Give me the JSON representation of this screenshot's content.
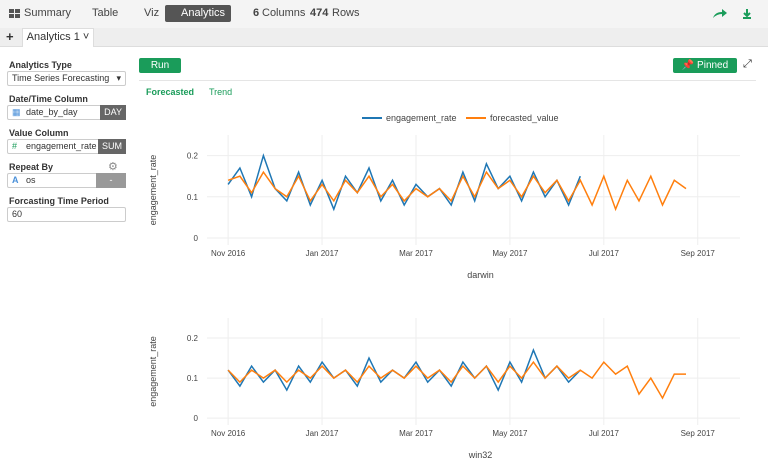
{
  "toolbar": {
    "items": [
      "Summary",
      "Table",
      "Viz",
      "Analytics"
    ],
    "columns_count": "6",
    "columns_label": "Columns",
    "rows_count": "474",
    "rows_label": "Rows"
  },
  "tab": "Analytics 1",
  "sidebar": {
    "analytics_type_label": "Analytics Type",
    "analytics_type": "Time Series Forecasting",
    "date_column_label": "Date/Time Column",
    "date_column": "date_by_day",
    "date_unit": "DAY",
    "value_column_label": "Value Column",
    "value_column": "engagement_rate",
    "value_agg": "SUM",
    "repeat_by_label": "Repeat By",
    "repeat_by": "os",
    "repeat_by_option": "-",
    "period_label": "Forcasting Time Period",
    "period": "60"
  },
  "buttons": {
    "run": "Run",
    "pinned": "Pinned"
  },
  "view_tabs": [
    "Forecasted",
    "Trend"
  ],
  "chart_data": [
    {
      "type": "line",
      "xlabel": "darwin",
      "ylabel": "engagement_rate",
      "x": [
        0,
        0.25,
        0.5,
        0.75,
        1,
        1.25,
        1.5,
        1.75,
        2,
        2.25,
        2.5,
        2.75,
        3,
        3.25,
        3.5,
        3.75,
        4,
        4.25,
        4.5,
        4.75,
        5,
        5.25,
        5.5,
        5.75,
        6,
        6.25,
        6.5,
        6.75,
        7,
        7.25,
        7.5,
        7.75,
        8,
        8.25,
        8.5,
        8.75,
        9,
        9.25,
        9.5,
        9.75
      ],
      "series": [
        {
          "name": "engagement_rate",
          "color": "#1f77b4",
          "values": [
            0.13,
            0.17,
            0.1,
            0.2,
            0.12,
            0.09,
            0.16,
            0.08,
            0.14,
            0.07,
            0.15,
            0.11,
            0.17,
            0.09,
            0.14,
            0.08,
            0.13,
            0.1,
            0.12,
            0.08,
            0.16,
            0.09,
            0.18,
            0.12,
            0.15,
            0.09,
            0.16,
            0.1,
            0.14,
            0.08,
            0.15,
            null,
            null,
            null,
            null,
            null,
            null,
            null,
            null,
            null
          ]
        },
        {
          "name": "forecasted_value",
          "color": "#ff7f0e",
          "values": [
            0.14,
            0.15,
            0.11,
            0.16,
            0.12,
            0.1,
            0.15,
            0.09,
            0.13,
            0.09,
            0.14,
            0.11,
            0.15,
            0.1,
            0.13,
            0.09,
            0.12,
            0.1,
            0.12,
            0.09,
            0.15,
            0.1,
            0.16,
            0.12,
            0.14,
            0.1,
            0.15,
            0.11,
            0.14,
            0.09,
            0.14,
            0.08,
            0.15,
            0.07,
            0.14,
            0.09,
            0.15,
            0.08,
            0.14,
            0.12
          ]
        }
      ],
      "xlim": [
        -0.45,
        10.9
      ],
      "ylim": [
        -0.017,
        0.25
      ],
      "xticks": [
        {
          "value": 0,
          "label": "Nov 2016"
        },
        {
          "value": 2,
          "label": "Jan 2017"
        },
        {
          "value": 4,
          "label": "Mar 2017"
        },
        {
          "value": 6,
          "label": "May 2017"
        },
        {
          "value": 8,
          "label": "Jul 2017"
        },
        {
          "value": 10,
          "label": "Sep 2017"
        }
      ],
      "yticks": [
        0,
        0.1,
        0.2
      ],
      "grid": true
    },
    {
      "type": "line",
      "xlabel": "win32",
      "ylabel": "engagement_rate",
      "x": [
        0,
        0.25,
        0.5,
        0.75,
        1,
        1.25,
        1.5,
        1.75,
        2,
        2.25,
        2.5,
        2.75,
        3,
        3.25,
        3.5,
        3.75,
        4,
        4.25,
        4.5,
        4.75,
        5,
        5.25,
        5.5,
        5.75,
        6,
        6.25,
        6.5,
        6.75,
        7,
        7.25,
        7.5,
        7.75,
        8,
        8.25,
        8.5,
        8.75,
        9,
        9.25,
        9.5,
        9.75
      ],
      "series": [
        {
          "color": "#1f77b4",
          "values": [
            0.12,
            0.08,
            0.13,
            0.09,
            0.12,
            0.07,
            0.13,
            0.09,
            0.14,
            0.1,
            0.12,
            0.08,
            0.15,
            0.09,
            0.12,
            0.1,
            0.14,
            0.09,
            0.12,
            0.08,
            0.14,
            0.1,
            0.13,
            0.07,
            0.14,
            0.09,
            0.17,
            0.1,
            0.13,
            0.09,
            0.12,
            null,
            null,
            null,
            null,
            null,
            null,
            null,
            null,
            null
          ]
        },
        {
          "color": "#ff7f0e",
          "values": [
            0.12,
            0.09,
            0.12,
            0.1,
            0.12,
            0.09,
            0.12,
            0.1,
            0.13,
            0.1,
            0.12,
            0.09,
            0.13,
            0.1,
            0.12,
            0.1,
            0.13,
            0.1,
            0.12,
            0.09,
            0.13,
            0.1,
            0.13,
            0.09,
            0.13,
            0.1,
            0.14,
            0.1,
            0.13,
            0.1,
            0.12,
            0.1,
            0.14,
            0.11,
            0.13,
            0.06,
            0.1,
            0.05,
            0.11,
            0.11
          ]
        }
      ],
      "xlim": [
        -0.45,
        10.9
      ],
      "ylim": [
        -0.017,
        0.25
      ],
      "xticks": [
        {
          "value": 0,
          "label": "Nov 2016"
        },
        {
          "value": 2,
          "label": "Jan 2017"
        },
        {
          "value": 4,
          "label": "Mar 2017"
        },
        {
          "value": 6,
          "label": "May 2017"
        },
        {
          "value": 8,
          "label": "Jul 2017"
        },
        {
          "value": 10,
          "label": "Sep 2017"
        }
      ],
      "yticks": [
        0,
        0.1,
        0.2
      ],
      "grid": true
    }
  ]
}
